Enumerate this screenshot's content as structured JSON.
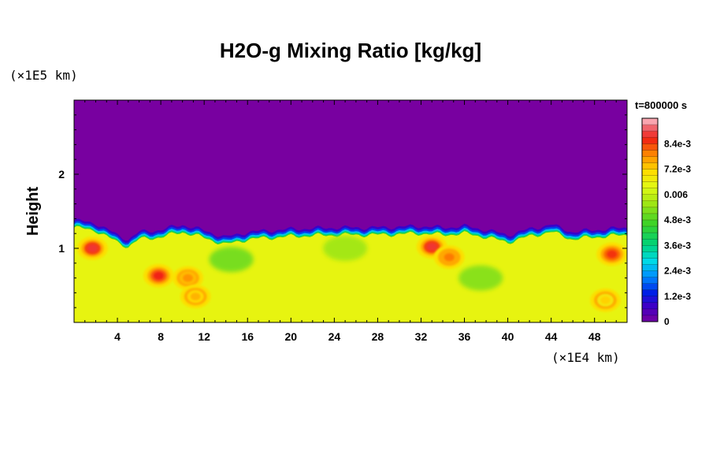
{
  "chart_data": {
    "type": "heatmap",
    "title": "H2O-g Mixing Ratio [kg/kg]",
    "ylabel": "Height",
    "x_unit": "(×1E4 km)",
    "y_unit": "(×1E5 km)",
    "time_label": "t=800000 s",
    "xlim": [
      0,
      51
    ],
    "ylim": [
      0,
      3
    ],
    "x_ticks": [
      4,
      8,
      12,
      16,
      20,
      24,
      28,
      32,
      36,
      40,
      44,
      48
    ],
    "y_ticks": [
      1,
      2
    ],
    "colorbar": {
      "range": [
        0,
        0.0096
      ],
      "tick_values": [
        0,
        0.0012,
        0.0024,
        0.0036,
        0.0048,
        0.006,
        0.0072,
        0.0084
      ],
      "tick_labels": [
        "0",
        "1.2e-3",
        "2.4e-3",
        "3.6e-3",
        "4.8e-3",
        "0.006",
        "7.2e-3",
        "8.4e-3"
      ],
      "levels": 32
    },
    "field": {
      "description_values": "Dry upper layer ≈ 0 kg/kg; moist lower layer ≈ 0.0065 kg/kg; boundary layer top near height 1.0–1.3",
      "upper_value": 0.0,
      "lower_value": 0.0065,
      "interface_height": [
        [
          0,
          1.28
        ],
        [
          2,
          1.24
        ],
        [
          4,
          1.08
        ],
        [
          5,
          1.02
        ],
        [
          6,
          1.12
        ],
        [
          8,
          1.15
        ],
        [
          10,
          1.22
        ],
        [
          12,
          1.14
        ],
        [
          14,
          1.05
        ],
        [
          16,
          1.12
        ],
        [
          20,
          1.16
        ],
        [
          24,
          1.18
        ],
        [
          28,
          1.18
        ],
        [
          32,
          1.2
        ],
        [
          34,
          1.18
        ],
        [
          36,
          1.2
        ],
        [
          38,
          1.15
        ],
        [
          40,
          1.08
        ],
        [
          42,
          1.16
        ],
        [
          44,
          1.22
        ],
        [
          46,
          1.12
        ],
        [
          48,
          1.15
        ],
        [
          51,
          1.18
        ]
      ],
      "moist_blobs": [
        {
          "x": 1.7,
          "y": 1.0,
          "value": 0.0088
        },
        {
          "x": 7.8,
          "y": 0.63,
          "value": 0.0086
        },
        {
          "x": 10.5,
          "y": 0.6,
          "value": 0.0078
        },
        {
          "x": 11.2,
          "y": 0.35,
          "value": 0.0075
        },
        {
          "x": 33.0,
          "y": 1.02,
          "value": 0.0088
        },
        {
          "x": 34.6,
          "y": 0.88,
          "value": 0.008
        },
        {
          "x": 49.6,
          "y": 0.92,
          "value": 0.0085
        },
        {
          "x": 49.0,
          "y": 0.3,
          "value": 0.0072
        }
      ],
      "drier_patches": [
        {
          "x": 37.5,
          "y": 0.6,
          "value": 0.0052
        },
        {
          "x": 14.5,
          "y": 0.85,
          "value": 0.005
        },
        {
          "x": 25.0,
          "y": 1.0,
          "value": 0.0055
        }
      ]
    }
  }
}
